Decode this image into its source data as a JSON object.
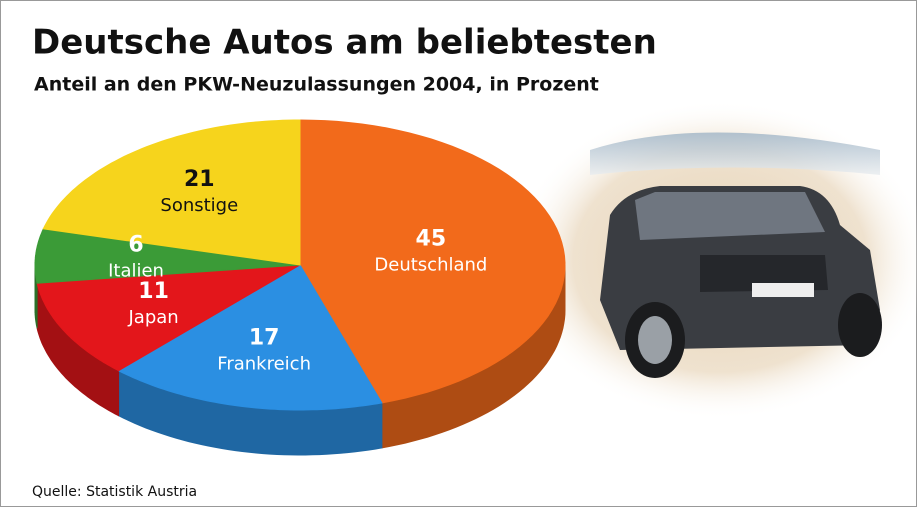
{
  "chart_data": {
    "type": "pie",
    "title": "Deutsche Autos am beliebtesten",
    "subtitle": "Anteil an den PKW-Neuzulassungen 2004, in Prozent",
    "source": "Quelle: Statistik Austria",
    "categories": [
      "Deutschland",
      "Frankreich",
      "Japan",
      "Italien",
      "Sonstige"
    ],
    "values": [
      45,
      17,
      11,
      6,
      21
    ],
    "colors": [
      "#f26a1b",
      "#2b8fe2",
      "#e3161b",
      "#3b9b37",
      "#f6d41c"
    ]
  }
}
